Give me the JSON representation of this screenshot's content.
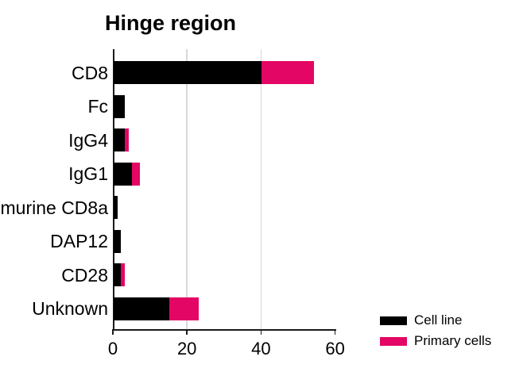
{
  "chart_data": {
    "type": "bar",
    "orientation": "horizontal",
    "stacked": true,
    "title": "Hinge region",
    "categories": [
      "CD8",
      "Fc",
      "IgG4",
      "IgG1",
      "murine CD8a",
      "DAP12",
      "CD28",
      "Unknown"
    ],
    "series": [
      {
        "name": "Cell line",
        "color": "#000000",
        "values": [
          40,
          3,
          3,
          5,
          1,
          2,
          2,
          15
        ]
      },
      {
        "name": "Primary cells",
        "color": "#e30664",
        "values": [
          14,
          0,
          1,
          2,
          0,
          0,
          1,
          8
        ]
      }
    ],
    "xlim": [
      0,
      60
    ],
    "x_ticks": [
      0,
      20,
      40,
      60
    ],
    "gridline_ticks": [
      20,
      40
    ],
    "grid": "vertical-light",
    "legend_position": "bottom-right",
    "colors": {
      "gridline": "#d9d9d9",
      "axis": "#1a1a1a",
      "background": "#ffffff"
    }
  }
}
